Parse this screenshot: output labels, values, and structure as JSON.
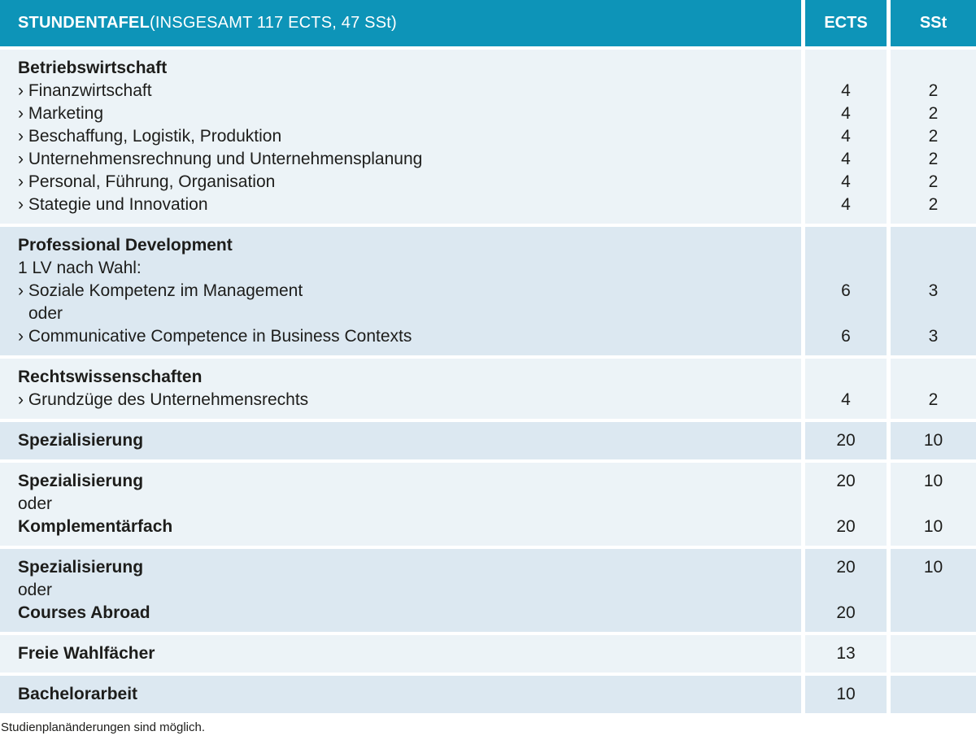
{
  "header": {
    "title_bold": "STUNDENTAFEL",
    "title_rest": " (INSGESAMT 117 ECTS, 47 SSt)",
    "col_ects": "ECTS",
    "col_sst": "SSt"
  },
  "colors": {
    "header_bg": "#0d94b8",
    "header_text": "#ffffff",
    "row_light": "#ecf3f7",
    "row_dark": "#dce8f1",
    "text": "#1d1d1b"
  },
  "sections": [
    {
      "tone": "light",
      "rows": [
        {
          "text": "Betriebswirtschaft",
          "bold": true,
          "ects": "",
          "sst": ""
        },
        {
          "text": "› Finanzwirtschaft",
          "ects": "4",
          "sst": "2"
        },
        {
          "text": "› Marketing",
          "ects": "4",
          "sst": "2"
        },
        {
          "text": "› Beschaffung, Logistik, Produktion",
          "ects": "4",
          "sst": "2"
        },
        {
          "text": "› Unternehmensrechnung und Unternehmensplanung",
          "ects": "4",
          "sst": "2"
        },
        {
          "text": "› Personal, Führung, Organisation",
          "ects": "4",
          "sst": "2"
        },
        {
          "text": "› Stategie und Innovation",
          "ects": "4",
          "sst": "2"
        }
      ]
    },
    {
      "tone": "dark",
      "rows": [
        {
          "text": "Professional Development",
          "bold": true,
          "ects": "",
          "sst": ""
        },
        {
          "text": "1 LV nach Wahl:",
          "ects": "",
          "sst": ""
        },
        {
          "text": "› Soziale Kompetenz im Management",
          "ects": "6",
          "sst": "3"
        },
        {
          "text": "oder",
          "indent": true,
          "ects": "",
          "sst": ""
        },
        {
          "text": "› Communicative Competence in Business Contexts",
          "ects": "6",
          "sst": "3"
        }
      ]
    },
    {
      "tone": "light",
      "rows": [
        {
          "text": "Rechtswissenschaften",
          "bold": true,
          "ects": "",
          "sst": ""
        },
        {
          "text": "› Grundzüge des Unternehmensrechts",
          "ects": "4",
          "sst": "2"
        }
      ]
    },
    {
      "tone": "dark",
      "rows": [
        {
          "text": "Spezialisierung",
          "bold": true,
          "ects": "20",
          "sst": "10"
        }
      ]
    },
    {
      "tone": "light",
      "rows": [
        {
          "text": "Spezialisierung",
          "bold": true,
          "ects": "20",
          "sst": "10"
        },
        {
          "text": "oder",
          "ects": "",
          "sst": ""
        },
        {
          "text": "Komplementärfach",
          "bold": true,
          "ects": "20",
          "sst": "10"
        }
      ]
    },
    {
      "tone": "dark",
      "rows": [
        {
          "text": "Spezialisierung",
          "bold": true,
          "ects": "20",
          "sst": "10"
        },
        {
          "text": "oder",
          "ects": "",
          "sst": ""
        },
        {
          "text": "Courses Abroad",
          "bold": true,
          "ects": "20",
          "sst": ""
        }
      ]
    },
    {
      "tone": "light",
      "rows": [
        {
          "text": "Freie Wahlfächer",
          "bold": true,
          "ects": "13",
          "sst": ""
        }
      ]
    },
    {
      "tone": "dark",
      "rows": [
        {
          "text": "Bachelorarbeit",
          "bold": true,
          "ects": "10",
          "sst": ""
        }
      ]
    }
  ],
  "footer_note": "Studienplanänderungen sind möglich."
}
